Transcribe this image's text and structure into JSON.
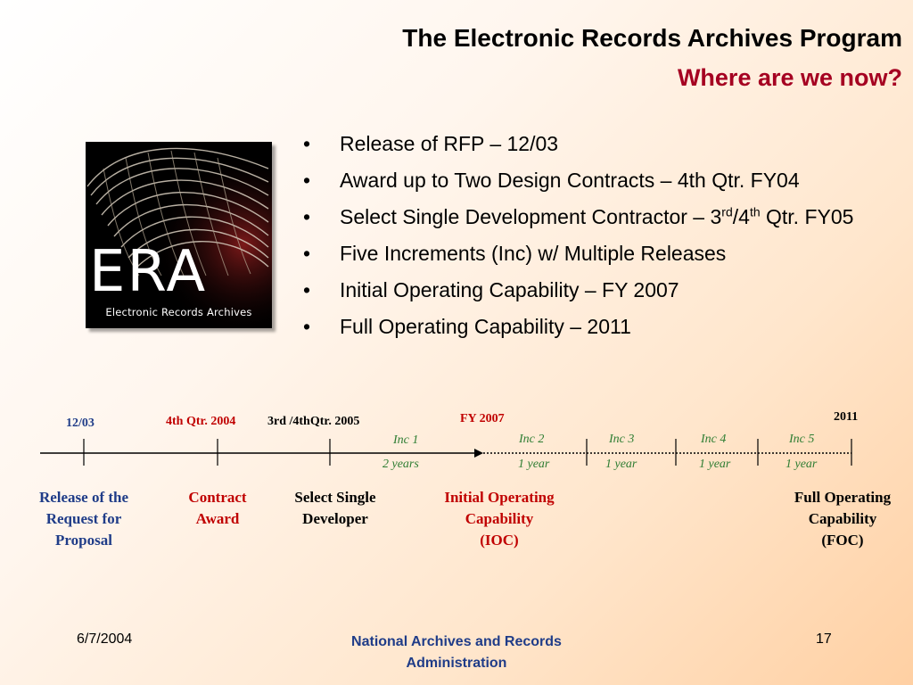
{
  "slide": {
    "title": "The Electronic Records Archives Program",
    "subtitle": "Where are we now?"
  },
  "logo": {
    "text": "ERA",
    "caption": "Electronic Records Archives"
  },
  "bullets": [
    {
      "text": "Release of RFP – 12/03"
    },
    {
      "text": "Award up to Two Design Contracts – 4th Qtr. FY04"
    },
    {
      "pre": "Select Single Development Contractor – 3",
      "sup1": "rd",
      "mid": "/4",
      "sup2": "th",
      "post": " Qtr. FY05"
    },
    {
      "text": "Five Increments (Inc) w/ Multiple Releases"
    },
    {
      "text": "Initial Operating Capability – FY 2007"
    },
    {
      "text": "Full Operating Capability – 2011"
    }
  ],
  "bullet_symbol": "•",
  "timeline": {
    "dates": {
      "d1203": "12/03",
      "d2004": "4th  Qtr. 2004",
      "d2005": "3rd /4thQtr. 2005",
      "fy2007": "FY 2007",
      "y2011": "2011"
    },
    "increments": [
      {
        "label": "Inc 1",
        "duration": "2 years"
      },
      {
        "label": "Inc 2",
        "duration": "1 year"
      },
      {
        "label": "Inc 3",
        "duration": "1 year"
      },
      {
        "label": "Inc 4",
        "duration": "1 year"
      },
      {
        "label": "Inc 5",
        "duration": "1 year"
      }
    ],
    "milestones": {
      "rfp": [
        "Release of the",
        "Request for",
        "Proposal"
      ],
      "contract": [
        "Contract",
        "Award"
      ],
      "developer": [
        "Select Single",
        "Developer"
      ],
      "ioc": [
        "Initial Operating",
        "Capability",
        "(IOC)"
      ],
      "foc": [
        "Full Operating",
        "Capability",
        "(FOC)"
      ]
    }
  },
  "footer": {
    "date": "6/7/2004",
    "org_line1": "National Archives and Records",
    "org_line2": "Administration",
    "page": "17"
  },
  "colors": {
    "title": "#000000",
    "subtitle": "#a50021",
    "navy": "#1f3c88",
    "red": "#c00000",
    "green": "#2e7d32"
  }
}
